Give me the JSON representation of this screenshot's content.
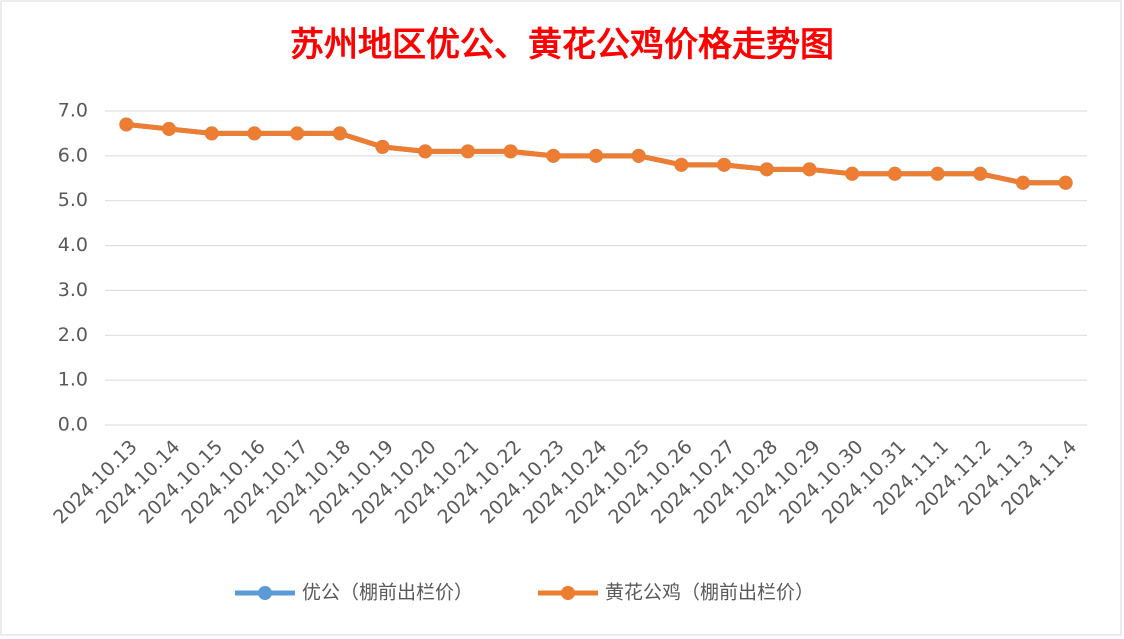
{
  "chart_data": {
    "type": "line",
    "title": "苏州地区优公、黄花公鸡价格走势图",
    "categories": [
      "2024.10.13",
      "2024.10.14",
      "2024.10.15",
      "2024.10.16",
      "2024.10.17",
      "2024.10.18",
      "2024.10.19",
      "2024.10.20",
      "2024.10.21",
      "2024.10.22",
      "2024.10.23",
      "2024.10.24",
      "2024.10.25",
      "2024.10.26",
      "2024.10.27",
      "2024.10.28",
      "2024.10.29",
      "2024.10.30",
      "2024.10.31",
      "2024.11.1",
      "2024.11.2",
      "2024.11.3",
      "2024.11.4"
    ],
    "series": [
      {
        "name": "优公（棚前出栏价）",
        "color": "#5b9bd5",
        "values": [
          6.7,
          6.6,
          6.5,
          6.5,
          6.5,
          6.5,
          6.2,
          6.1,
          6.1,
          6.1,
          6.0,
          6.0,
          6.0,
          5.8,
          5.8,
          5.7,
          5.7,
          5.6,
          5.6,
          5.6,
          5.6,
          5.4,
          5.4
        ]
      },
      {
        "name": "黄花公鸡（棚前出栏价）",
        "color": "#ed7d31",
        "values": [
          6.7,
          6.6,
          6.5,
          6.5,
          6.5,
          6.5,
          6.2,
          6.1,
          6.1,
          6.1,
          6.0,
          6.0,
          6.0,
          5.8,
          5.8,
          5.7,
          5.7,
          5.6,
          5.6,
          5.6,
          5.6,
          5.4,
          5.4
        ]
      }
    ],
    "ylim": [
      0,
      7
    ],
    "yticks": [
      {
        "value": 0,
        "label": "0.0"
      },
      {
        "value": 1,
        "label": "1.0"
      },
      {
        "value": 2,
        "label": "2.0"
      },
      {
        "value": 3,
        "label": "3.0"
      },
      {
        "value": 4,
        "label": "4.0"
      },
      {
        "value": 5,
        "label": "5.0"
      },
      {
        "value": 6,
        "label": "6.0"
      },
      {
        "value": 7,
        "label": "7.0"
      }
    ],
    "grid": true,
    "legend": "bottom"
  }
}
